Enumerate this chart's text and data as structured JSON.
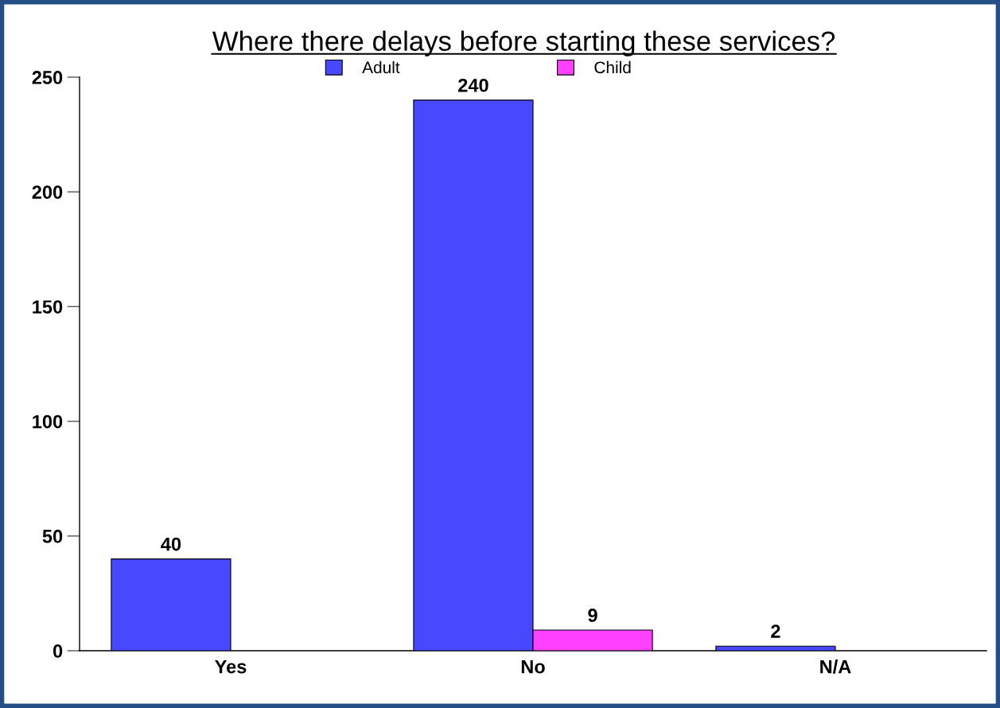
{
  "chart_data": {
    "type": "bar",
    "title": "Where there delays before starting these services?",
    "categories": [
      "Yes",
      "No",
      "N/A"
    ],
    "series": [
      {
        "name": "Adult",
        "color": "#4848ff",
        "values": [
          40,
          240,
          2
        ]
      },
      {
        "name": "Child",
        "color": "#ff40ff",
        "values": [
          null,
          9,
          null
        ]
      }
    ],
    "ylim": [
      0,
      250
    ],
    "yticks": [
      0,
      50,
      100,
      150,
      200,
      250
    ],
    "grid": false,
    "legend": "top",
    "data_labels": true
  }
}
